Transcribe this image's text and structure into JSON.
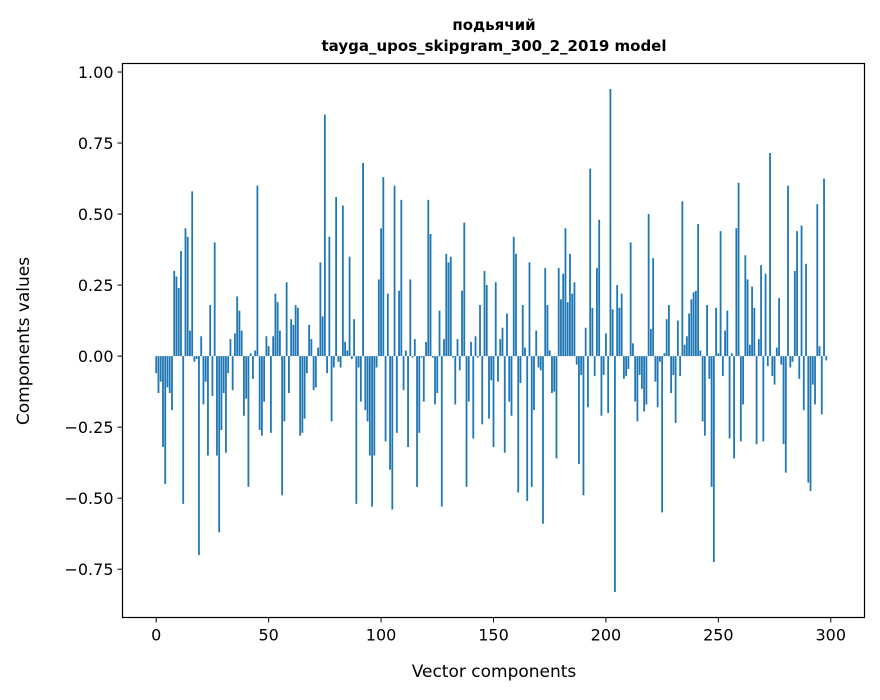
{
  "chart_data": {
    "type": "bar",
    "title_line1": "подьячий",
    "title_line2": "tayga_upos_skipgram_300_2_2019 model",
    "xlabel": "Vector components",
    "ylabel": "Components values",
    "xlim": [
      -15,
      315
    ],
    "ylim": [
      -0.92,
      1.03
    ],
    "xticks": [
      0,
      50,
      100,
      150,
      200,
      250,
      300
    ],
    "xtick_labels": [
      "0",
      "50",
      "100",
      "150",
      "200",
      "250",
      "300"
    ],
    "yticks": [
      1.0,
      0.75,
      0.5,
      0.25,
      0.0,
      -0.25,
      -0.5,
      -0.75
    ],
    "ytick_labels": [
      "1.00",
      "0.75",
      "0.50",
      "0.25",
      "0.00",
      "−0.25",
      "−0.50",
      "−0.75"
    ],
    "grid": false,
    "bar_color": "#1f77b4",
    "values": [
      -0.06,
      -0.13,
      -0.09,
      -0.32,
      -0.45,
      -0.11,
      -0.13,
      -0.19,
      0.3,
      0.28,
      0.24,
      0.37,
      -0.52,
      0.45,
      0.42,
      0.09,
      0.58,
      -0.02,
      -0.01,
      -0.7,
      0.07,
      -0.17,
      -0.09,
      -0.35,
      0.18,
      -0.14,
      0.4,
      -0.35,
      -0.62,
      -0.26,
      -0.13,
      -0.34,
      -0.06,
      0.06,
      -0.12,
      0.08,
      0.21,
      0.16,
      0.09,
      -0.21,
      -0.15,
      -0.46,
      0.01,
      -0.08,
      0.02,
      0.6,
      -0.26,
      -0.28,
      -0.16,
      0.07,
      0.035,
      -0.27,
      0.07,
      0.22,
      0.19,
      0.09,
      -0.49,
      -0.23,
      0.26,
      -0.13,
      0.13,
      0.11,
      0.18,
      0.17,
      -0.28,
      -0.27,
      -0.22,
      -0.06,
      0.11,
      0.06,
      -0.12,
      -0.11,
      0.03,
      0.33,
      0.14,
      0.85,
      -0.06,
      0.42,
      -0.23,
      -0.04,
      0.56,
      -0.02,
      -0.04,
      0.53,
      0.05,
      0.02,
      0.35,
      -0.01,
      0.13,
      -0.52,
      -0.04,
      -0.16,
      0.68,
      -0.19,
      -0.23,
      -0.35,
      -0.53,
      -0.35,
      -0.04,
      0.27,
      0.45,
      0.63,
      -0.3,
      0.22,
      -0.4,
      -0.54,
      0.6,
      -0.27,
      0.23,
      0.55,
      -0.12,
      0.02,
      -0.32,
      0.27,
      -0.005,
      0.06,
      -0.46,
      -0.27,
      -0.005,
      -0.16,
      0.05,
      0.55,
      0.43,
      -0.005,
      -0.17,
      -0.13,
      0.16,
      -0.53,
      0.06,
      0.36,
      0.33,
      0.35,
      -0.005,
      -0.17,
      0.06,
      -0.05,
      0.23,
      0.47,
      -0.46,
      -0.16,
      0.05,
      -0.29,
      0.07,
      -0.005,
      0.18,
      -0.24,
      0.3,
      0.25,
      -0.22,
      -0.085,
      -0.32,
      0.26,
      -0.09,
      0.06,
      0.1,
      -0.34,
      0.15,
      -0.16,
      -0.21,
      0.42,
      0.36,
      -0.48,
      -0.095,
      0.18,
      0.03,
      -0.51,
      0.33,
      -0.46,
      -0.19,
      0.09,
      -0.04,
      -0.05,
      -0.59,
      0.31,
      0.18,
      0.02,
      -0.13,
      -0.125,
      -0.36,
      0.31,
      0.2,
      0.29,
      0.45,
      0.19,
      0.36,
      0.22,
      0.26,
      -0.03,
      -0.38,
      -0.066,
      -0.49,
      0.1,
      -0.18,
      0.66,
      0.17,
      -0.07,
      0.31,
      0.48,
      -0.21,
      -0.066,
      0.08,
      -0.2,
      0.94,
      0.165,
      -0.83,
      0.25,
      0.17,
      0.22,
      -0.08,
      -0.07,
      -0.045,
      0.4,
      0.045,
      -0.16,
      -0.23,
      -0.066,
      -0.115,
      -0.195,
      -0.17,
      0.5,
      0.095,
      0.345,
      -0.09,
      -0.18,
      -0.02,
      -0.55,
      0.01,
      0.13,
      0.18,
      -0.13,
      -0.066,
      -0.235,
      0.125,
      -0.07,
      0.545,
      0.04,
      0.07,
      0.15,
      0.2,
      0.225,
      0.23,
      0.465,
      0.02,
      -0.23,
      -0.28,
      0.18,
      -0.08,
      -0.46,
      -0.725,
      0.17,
      0.01,
      0.44,
      -0.07,
      0.09,
      0.16,
      -0.29,
      0.01,
      -0.36,
      0.45,
      0.61,
      -0.3,
      -0.17,
      0.355,
      0.27,
      0.04,
      0.245,
      0.17,
      -0.31,
      0.06,
      0.32,
      -0.3,
      0.29,
      -0.035,
      0.715,
      -0.07,
      -0.1,
      0.03,
      0.205,
      -0.03,
      -0.31,
      -0.41,
      0.6,
      -0.04,
      -0.02,
      0.3,
      0.44,
      -0.08,
      0.46,
      -0.19,
      0.325,
      -0.445,
      -0.475,
      -0.1,
      -0.17,
      0.535,
      0.035,
      -0.205,
      0.625,
      -0.015
    ]
  }
}
